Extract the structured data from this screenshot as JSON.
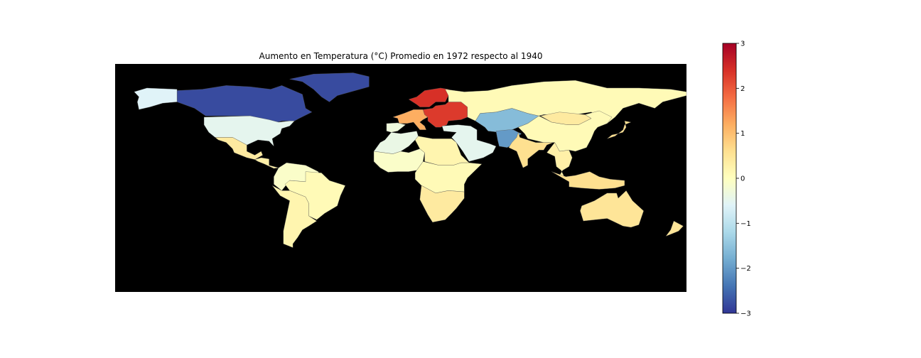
{
  "figure": {
    "title": "Aumento en Temperatura (°C) Promedio en 1972 respecto al 1940"
  },
  "map": {
    "background_color": "#000000",
    "projection": "equirectangular",
    "lon_range": [
      -180,
      180
    ],
    "lat_range": [
      -90,
      90
    ]
  },
  "colorbar": {
    "colormap": "RdYlBu_r",
    "range": [
      -3,
      3
    ],
    "tick_labels": [
      "3",
      "2",
      "1",
      "0",
      "−1",
      "−2",
      "−3"
    ],
    "tick_values": [
      3,
      2,
      1,
      0,
      -1,
      -2,
      -3
    ],
    "stops": [
      "#313695",
      "#4575b4",
      "#74add1",
      "#abd9e9",
      "#e0f3f8",
      "#ffffbf",
      "#fee090",
      "#fdae61",
      "#f46d43",
      "#d73027",
      "#a50026"
    ]
  },
  "chart_data": {
    "type": "choropleth",
    "title": "Aumento en Temperatura (°C) Promedio en 1972 respecto al 1940",
    "value_range": [
      -3,
      3
    ],
    "regions": [
      {
        "region": "Canada",
        "value": -2.8
      },
      {
        "region": "United States",
        "value": -0.5
      },
      {
        "region": "Alaska",
        "value": -0.6
      },
      {
        "region": "Greenland",
        "value": -2.8
      },
      {
        "region": "Mexico",
        "value": 0.4
      },
      {
        "region": "Central America",
        "value": 0.3
      },
      {
        "region": "Northern South America",
        "value": -0.1
      },
      {
        "region": "Brazil",
        "value": 0.1
      },
      {
        "region": "Southern South America",
        "value": 0.2
      },
      {
        "region": "Scandinavia",
        "value": 2.4
      },
      {
        "region": "Western Europe",
        "value": 1.2
      },
      {
        "region": "Eastern Europe",
        "value": 2.3
      },
      {
        "region": "Iberia",
        "value": -0.3
      },
      {
        "region": "Northwest Africa",
        "value": -0.4
      },
      {
        "region": "West Africa",
        "value": -0.1
      },
      {
        "region": "North Africa",
        "value": 0.2
      },
      {
        "region": "Central Africa",
        "value": 0.1
      },
      {
        "region": "Southern Africa",
        "value": 0.4
      },
      {
        "region": "Middle East",
        "value": -0.5
      },
      {
        "region": "Central Asia",
        "value": -1.6
      },
      {
        "region": "Afghanistan-Pakistan",
        "value": -2.0
      },
      {
        "region": "Russia",
        "value": 0.1
      },
      {
        "region": "India",
        "value": 0.6
      },
      {
        "region": "China",
        "value": 0.1
      },
      {
        "region": "Mongolia",
        "value": 0.4
      },
      {
        "region": "Japan",
        "value": 0.6
      },
      {
        "region": "Southeast Asia",
        "value": 0.3
      },
      {
        "region": "Indonesia",
        "value": 0.6
      },
      {
        "region": "Australia",
        "value": 0.5
      },
      {
        "region": "New Zealand",
        "value": 0.5
      }
    ]
  }
}
